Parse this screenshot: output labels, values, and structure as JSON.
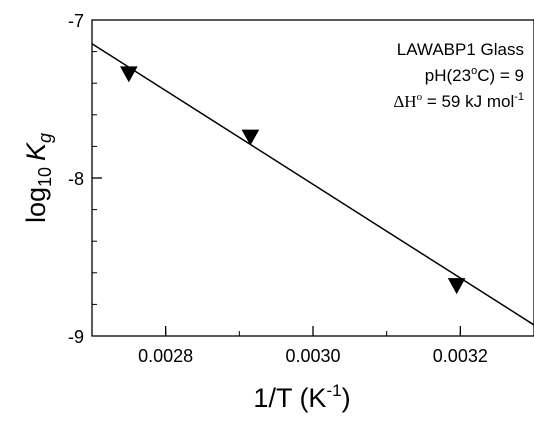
{
  "chart_data": {
    "type": "scatter",
    "title": "",
    "xlabel": {
      "main": "1/T (K",
      "sup": "-1",
      "close": ")"
    },
    "ylabel": {
      "main": "log",
      "sub": "10",
      "var": "K",
      "varsub": "g"
    },
    "xlim": [
      0.0027,
      0.0033
    ],
    "ylim": [
      -9,
      -7
    ],
    "x_ticks": [
      {
        "value": 0.0028,
        "label": "0.0028"
      },
      {
        "value": 0.003,
        "label": "0.0030"
      },
      {
        "value": 0.0032,
        "label": "0.0032"
      }
    ],
    "y_ticks": [
      {
        "value": -7,
        "label": "-7"
      },
      {
        "value": -8,
        "label": "-8"
      },
      {
        "value": -9,
        "label": "-9"
      }
    ],
    "x_minor_step": 0.0001,
    "y_minor_step": 0.2,
    "grid": false,
    "series": [
      {
        "marker": "down-triangle",
        "color": "#000000",
        "points": [
          {
            "x": 0.00275,
            "y": -7.34
          },
          {
            "x": 0.002915,
            "y": -7.74
          },
          {
            "x": 0.003195,
            "y": -8.68
          }
        ]
      }
    ],
    "fit_line": {
      "x": [
        0.0027,
        0.0033
      ],
      "y": [
        -7.15,
        -8.93
      ]
    },
    "annotation": {
      "line1": "LAWABP1 Glass",
      "line2": {
        "pre": "pH(23",
        "sup": "o",
        "post": "C) = 9"
      },
      "line3": {
        "delta": "ΔH",
        "sup": "o",
        "post": " = 59 kJ mol",
        "sup2": "-1"
      }
    }
  }
}
